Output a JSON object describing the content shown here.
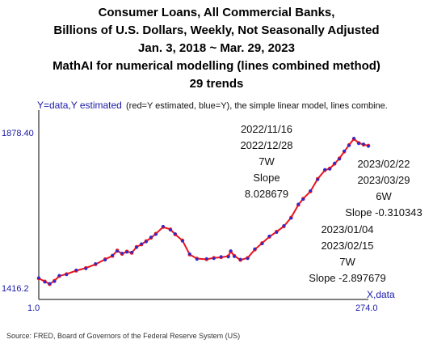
{
  "header": {
    "line1": "Consumer Loans, All Commercial Banks,",
    "line2": "Billions of U.S. Dollars, Weekly, Not Seasonally Adjusted",
    "line3": "Jan. 3, 2018 ~ Mar. 29, 2023",
    "line4": "MathAI for numerical modelling (lines combined method)",
    "line5": "29 trends"
  },
  "plot_labels": {
    "y_axis": "Y=data,Y estimated",
    "x_axis": "X,data",
    "legend": "(red=Y estimated, blue=Y), the simple linear model, lines combine.",
    "y_max": "1878.40",
    "y_min": "1416.2",
    "x_min": "1.0",
    "x_max": "274.0"
  },
  "annotations": [
    {
      "start": "2022/11/16",
      "end": "2022/12/28",
      "weeks": "7W",
      "slope": "Slope 8.028679"
    },
    {
      "start": "2023/02/22",
      "end": "2023/03/29",
      "weeks": "6W",
      "slope": "Slope -0.310343"
    },
    {
      "start": "2023/01/04",
      "end": "2023/02/15",
      "weeks": "7W",
      "slope": "Slope -2.897679"
    }
  ],
  "source": "Source: FRED, Board of Governors of the Federal Reserve System (US)",
  "colors": {
    "estimated": "#e8141e",
    "data": "#2a2ad0",
    "axis": "#000000",
    "label": "#1a1aa8"
  },
  "chart_data": {
    "type": "line",
    "xlim": [
      1,
      274
    ],
    "ylim": [
      1416.2,
      1878.4
    ],
    "series": [
      {
        "name": "Y estimated",
        "color": "#e8141e",
        "x": [
          1,
          6,
          10,
          14,
          18,
          24,
          32,
          40,
          48,
          56,
          62,
          66,
          70,
          74,
          78,
          82,
          86,
          90,
          94,
          98,
          104,
          110,
          114,
          120,
          126,
          132,
          140,
          146,
          152,
          158,
          160,
          163,
          168,
          174,
          180,
          186,
          192,
          198,
          204,
          210,
          216,
          220,
          226,
          232,
          238,
          242,
          246,
          250,
          254,
          258,
          262,
          266,
          270,
          274
        ],
        "y": [
          1445,
          1436,
          1428,
          1438,
          1452,
          1458,
          1468,
          1476,
          1487,
          1502,
          1512,
          1528,
          1518,
          1525,
          1521,
          1539,
          1546,
          1556,
          1566,
          1578,
          1598,
          1591,
          1576,
          1558,
          1516,
          1504,
          1502,
          1506,
          1508,
          1511,
          1525,
          1512,
          1500,
          1506,
          1531,
          1550,
          1569,
          1584,
          1600,
          1626,
          1664,
          1682,
          1704,
          1741,
          1767,
          1772,
          1786,
          1802,
          1822,
          1842,
          1860,
          1848,
          1843,
          1840
        ]
      },
      {
        "name": "Y",
        "color": "#2a2ad0",
        "x": [
          1,
          6,
          10,
          14,
          18,
          24,
          32,
          40,
          48,
          56,
          62,
          66,
          70,
          74,
          78,
          82,
          86,
          90,
          94,
          98,
          104,
          110,
          114,
          120,
          126,
          132,
          140,
          146,
          152,
          158,
          160,
          163,
          168,
          174,
          180,
          186,
          192,
          198,
          204,
          210,
          216,
          220,
          226,
          232,
          238,
          242,
          246,
          250,
          254,
          258,
          262,
          266,
          270,
          274
        ],
        "y": [
          1447,
          1434,
          1430,
          1436,
          1454,
          1456,
          1470,
          1474,
          1489,
          1500,
          1514,
          1526,
          1520,
          1523,
          1523,
          1537,
          1548,
          1554,
          1568,
          1576,
          1600,
          1589,
          1578,
          1556,
          1518,
          1502,
          1504,
          1504,
          1510,
          1509,
          1527,
          1510,
          1502,
          1504,
          1533,
          1548,
          1571,
          1582,
          1602,
          1624,
          1666,
          1680,
          1706,
          1739,
          1769,
          1770,
          1788,
          1800,
          1824,
          1840,
          1862,
          1846,
          1845,
          1838
        ]
      }
    ]
  }
}
